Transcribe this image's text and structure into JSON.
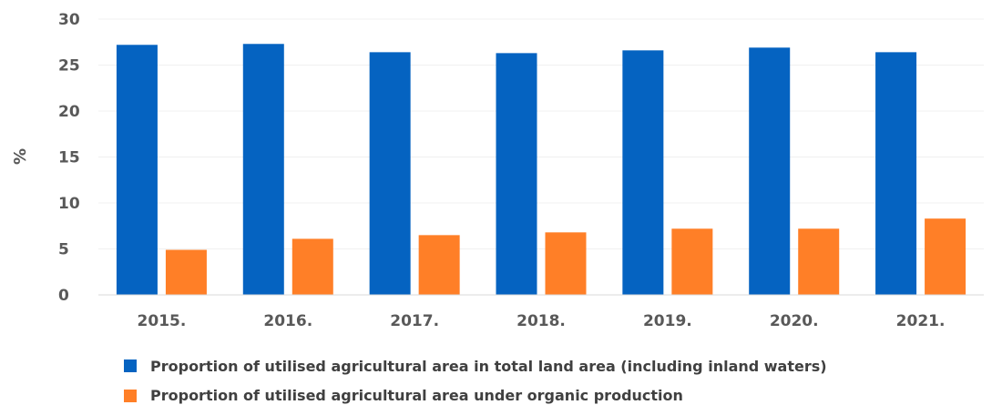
{
  "chart_data": {
    "type": "bar",
    "title": "",
    "xlabel": "",
    "ylabel": "%",
    "ylim": [
      0,
      30
    ],
    "yticks": [
      0,
      5,
      10,
      15,
      20,
      25,
      30
    ],
    "categories": [
      "2015.",
      "2016.",
      "2017.",
      "2018.",
      "2019.",
      "2020.",
      "2021."
    ],
    "series": [
      {
        "name": "Proportion of utilised agricultural area in total land area (including inland waters)",
        "color": "#0563C1",
        "values": [
          27.2,
          27.3,
          26.4,
          26.3,
          26.6,
          26.9,
          26.4
        ]
      },
      {
        "name": "Proportion of utilised agricultural area under organic production",
        "color": "#FF7F27",
        "values": [
          4.9,
          6.1,
          6.5,
          6.8,
          7.2,
          7.2,
          8.3
        ]
      }
    ],
    "grid": true,
    "legend_position": "bottom"
  }
}
